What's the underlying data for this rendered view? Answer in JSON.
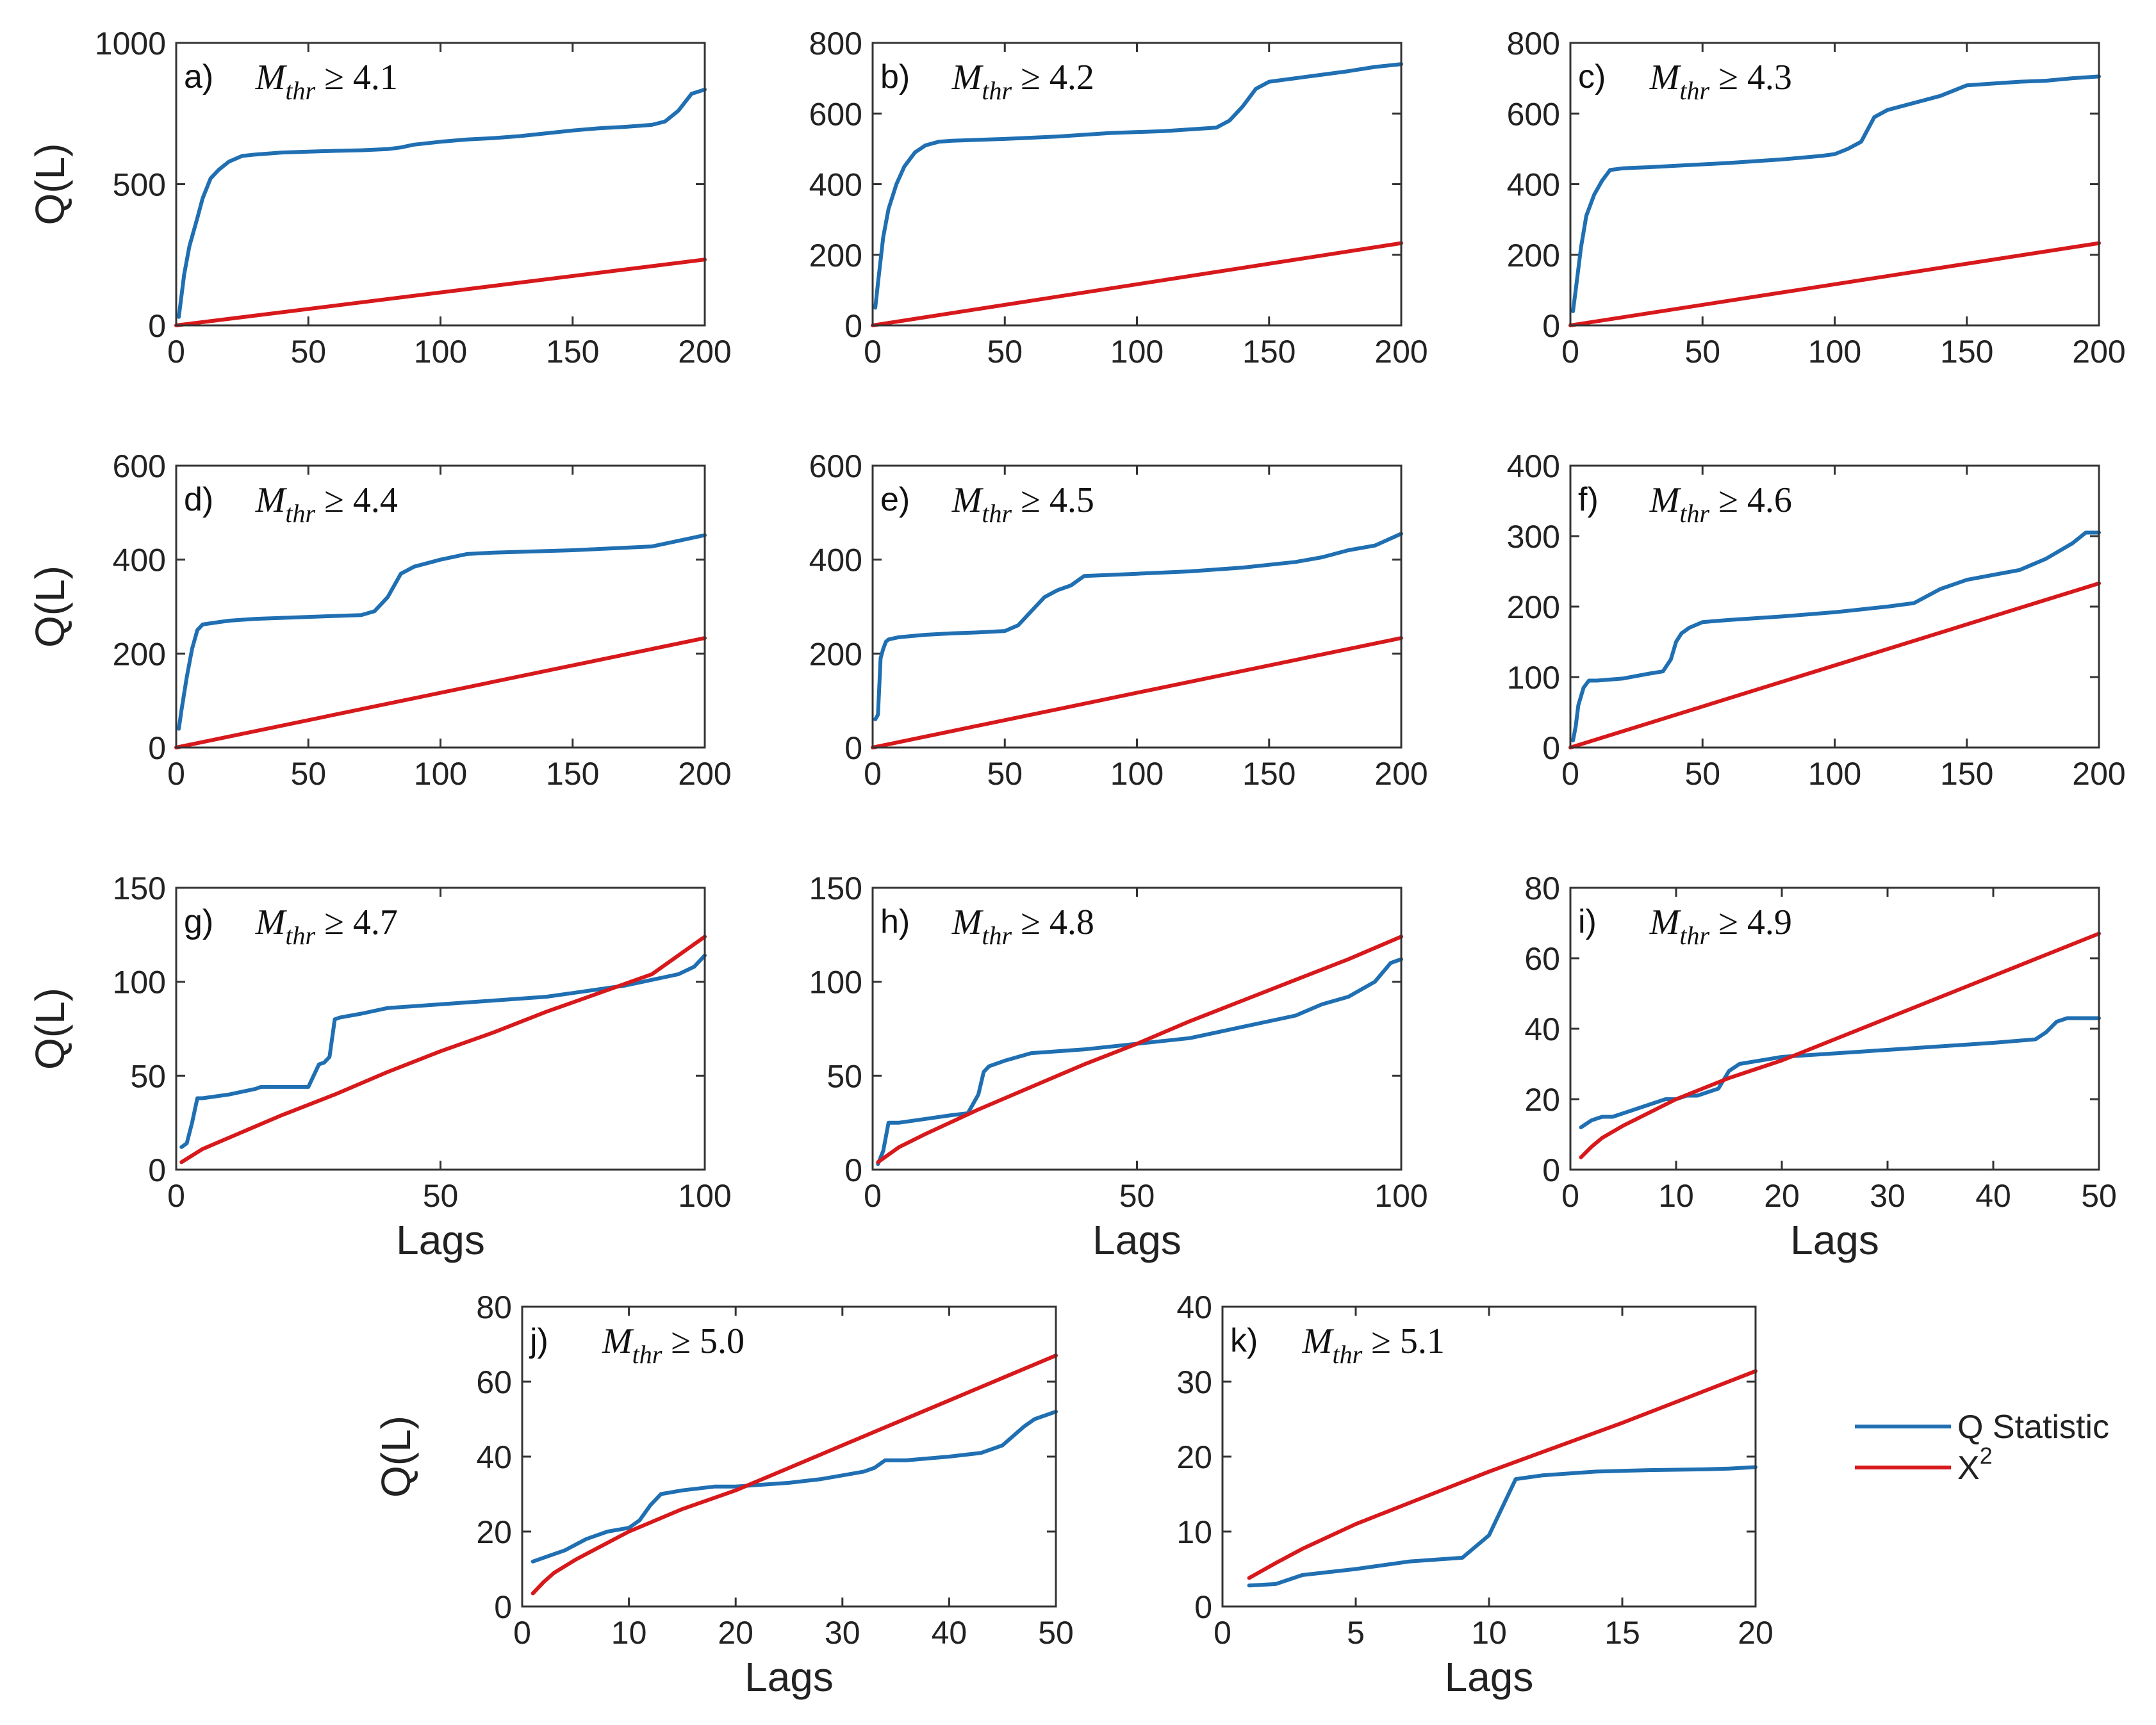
{
  "figure": {
    "legend": [
      {
        "name": "Q Statistic",
        "color": "#1f6fb2"
      },
      {
        "name": "X",
        "sup": "2",
        "color": "#d7191c"
      }
    ]
  },
  "chart_data": [
    {
      "id": "a",
      "type": "line",
      "panel_label": "a)",
      "mthr_prefix": "M",
      "mthr_sub": "thr",
      "mthr_suffix": " ≥ 4.1",
      "ylabel": "Q(L)",
      "xlabel": "",
      "xlim": [
        0,
        200
      ],
      "ylim": [
        0,
        1000
      ],
      "xticks": [
        0,
        50,
        100,
        150,
        200
      ],
      "yticks": [
        0,
        500,
        1000
      ],
      "series": [
        {
          "name": "Q Statistic",
          "x": [
            1,
            3,
            5,
            8,
            10,
            13,
            16,
            20,
            25,
            30,
            40,
            50,
            60,
            70,
            80,
            85,
            90,
            100,
            110,
            120,
            130,
            140,
            150,
            160,
            170,
            180,
            185,
            190,
            195,
            200
          ],
          "values": [
            30,
            180,
            280,
            380,
            450,
            520,
            550,
            580,
            600,
            605,
            612,
            615,
            618,
            620,
            624,
            630,
            640,
            650,
            658,
            663,
            670,
            680,
            690,
            698,
            703,
            710,
            722,
            760,
            820,
            835
          ]
        },
        {
          "name": "X2",
          "x": [
            0,
            200
          ],
          "values": [
            0,
            233
          ]
        }
      ]
    },
    {
      "id": "b",
      "type": "line",
      "panel_label": "b)",
      "mthr_prefix": "M",
      "mthr_sub": "thr",
      "mthr_suffix": " ≥ 4.2",
      "ylabel": "",
      "xlabel": "",
      "xlim": [
        0,
        200
      ],
      "ylim": [
        0,
        800
      ],
      "xticks": [
        0,
        50,
        100,
        150,
        200
      ],
      "yticks": [
        0,
        200,
        400,
        600,
        800
      ],
      "series": [
        {
          "name": "Q Statistic",
          "x": [
            1,
            2,
            4,
            6,
            9,
            12,
            16,
            20,
            25,
            30,
            50,
            70,
            90,
            110,
            130,
            135,
            140,
            145,
            150,
            160,
            170,
            180,
            190,
            200
          ],
          "values": [
            50,
            120,
            250,
            330,
            400,
            450,
            490,
            510,
            520,
            523,
            528,
            535,
            545,
            550,
            560,
            580,
            620,
            670,
            690,
            700,
            710,
            720,
            732,
            740
          ]
        },
        {
          "name": "X2",
          "x": [
            0,
            200
          ],
          "values": [
            0,
            233
          ]
        }
      ]
    },
    {
      "id": "c",
      "type": "line",
      "panel_label": "c)",
      "mthr_prefix": "M",
      "mthr_sub": "thr",
      "mthr_suffix": " ≥ 4.3",
      "ylabel": "",
      "xlabel": "",
      "xlim": [
        0,
        200
      ],
      "ylim": [
        0,
        800
      ],
      "xticks": [
        0,
        50,
        100,
        150,
        200
      ],
      "yticks": [
        0,
        200,
        400,
        600,
        800
      ],
      "series": [
        {
          "name": "Q Statistic",
          "x": [
            1,
            2,
            4,
            6,
            9,
            12,
            15,
            20,
            30,
            40,
            60,
            80,
            95,
            100,
            105,
            110,
            115,
            120,
            130,
            140,
            150,
            160,
            170,
            180,
            190,
            200
          ],
          "values": [
            40,
            100,
            220,
            310,
            370,
            410,
            440,
            445,
            448,
            452,
            460,
            470,
            480,
            485,
            500,
            520,
            590,
            610,
            630,
            650,
            680,
            685,
            690,
            693,
            700,
            705
          ]
        },
        {
          "name": "X2",
          "x": [
            0,
            200
          ],
          "values": [
            0,
            233
          ]
        }
      ]
    },
    {
      "id": "d",
      "type": "line",
      "panel_label": "d)",
      "mthr_prefix": "M",
      "mthr_sub": "thr",
      "mthr_suffix": " ≥ 4.4",
      "ylabel": "Q(L)",
      "xlabel": "",
      "xlim": [
        0,
        200
      ],
      "ylim": [
        0,
        600
      ],
      "xticks": [
        0,
        50,
        100,
        150,
        200
      ],
      "yticks": [
        0,
        200,
        400,
        600
      ],
      "series": [
        {
          "name": "Q Statistic",
          "x": [
            1,
            2,
            4,
            6,
            8,
            10,
            15,
            20,
            30,
            50,
            70,
            75,
            80,
            85,
            90,
            100,
            110,
            120,
            150,
            180,
            190,
            200
          ],
          "values": [
            40,
            80,
            150,
            210,
            250,
            262,
            266,
            270,
            274,
            278,
            282,
            290,
            320,
            370,
            385,
            400,
            412,
            415,
            420,
            428,
            440,
            452
          ]
        },
        {
          "name": "X2",
          "x": [
            0,
            200
          ],
          "values": [
            0,
            233
          ]
        }
      ]
    },
    {
      "id": "e",
      "type": "line",
      "panel_label": "e)",
      "mthr_prefix": "M",
      "mthr_sub": "thr",
      "mthr_suffix": " ≥ 4.5",
      "ylabel": "",
      "xlabel": "",
      "xlim": [
        0,
        200
      ],
      "ylim": [
        0,
        600
      ],
      "xticks": [
        0,
        50,
        100,
        150,
        200
      ],
      "yticks": [
        0,
        200,
        400,
        600
      ],
      "series": [
        {
          "name": "Q Statistic",
          "x": [
            1,
            2,
            3,
            4,
            5,
            6,
            10,
            20,
            30,
            40,
            50,
            55,
            60,
            65,
            70,
            75,
            80,
            100,
            120,
            140,
            160,
            170,
            180,
            190,
            200
          ],
          "values": [
            60,
            70,
            190,
            210,
            225,
            230,
            235,
            240,
            243,
            245,
            248,
            260,
            290,
            320,
            335,
            345,
            365,
            370,
            375,
            383,
            395,
            405,
            420,
            430,
            455
          ]
        },
        {
          "name": "X2",
          "x": [
            0,
            200
          ],
          "values": [
            0,
            233
          ]
        }
      ]
    },
    {
      "id": "f",
      "type": "line",
      "panel_label": "f)",
      "mthr_prefix": "M",
      "mthr_sub": "thr",
      "mthr_suffix": " ≥ 4.6",
      "ylabel": "",
      "xlabel": "",
      "xlim": [
        0,
        200
      ],
      "ylim": [
        0,
        400
      ],
      "xticks": [
        0,
        50,
        100,
        150,
        200
      ],
      "yticks": [
        0,
        100,
        200,
        300,
        400
      ],
      "series": [
        {
          "name": "Q Statistic",
          "x": [
            1,
            2,
            3,
            5,
            7,
            10,
            20,
            30,
            35,
            38,
            40,
            42,
            45,
            50,
            60,
            80,
            100,
            120,
            130,
            140,
            150,
            160,
            170,
            180,
            190,
            195,
            200
          ],
          "values": [
            10,
            30,
            60,
            85,
            95,
            95,
            98,
            105,
            108,
            125,
            150,
            162,
            170,
            178,
            181,
            186,
            192,
            200,
            205,
            225,
            238,
            245,
            252,
            268,
            290,
            305,
            305
          ]
        },
        {
          "name": "X2",
          "x": [
            0,
            200
          ],
          "values": [
            0,
            233
          ]
        }
      ]
    },
    {
      "id": "g",
      "type": "line",
      "panel_label": "g)",
      "mthr_prefix": "M",
      "mthr_sub": "thr",
      "mthr_suffix": " ≥ 4.7",
      "ylabel": "Q(L)",
      "xlabel": "Lags",
      "xlim": [
        0,
        100
      ],
      "ylim": [
        0,
        150
      ],
      "xticks": [
        0,
        50,
        100
      ],
      "yticks": [
        0,
        50,
        100,
        150
      ],
      "series": [
        {
          "name": "Q Statistic",
          "x": [
            1,
            2,
            3,
            4,
            5,
            10,
            15,
            16,
            20,
            25,
            26,
            27,
            28,
            29,
            30,
            31,
            35,
            40,
            50,
            60,
            70,
            75,
            80,
            85,
            90,
            95,
            98,
            100
          ],
          "values": [
            12,
            14,
            25,
            38,
            38,
            40,
            43,
            44,
            44,
            44,
            50,
            56,
            57,
            60,
            80,
            81,
            83,
            86,
            88,
            90,
            92,
            94,
            96,
            98,
            101,
            104,
            108,
            114
          ]
        },
        {
          "name": "X2",
          "x": [
            1,
            5,
            10,
            20,
            30,
            40,
            50,
            60,
            70,
            80,
            90,
            100
          ],
          "values": [
            4,
            11,
            17,
            29,
            40,
            52,
            63,
            73,
            84,
            94,
            104,
            124
          ]
        }
      ]
    },
    {
      "id": "h",
      "type": "line",
      "panel_label": "h)",
      "mthr_prefix": "M",
      "mthr_sub": "thr",
      "mthr_suffix": " ≥ 4.8",
      "ylabel": "",
      "xlabel": "Lags",
      "xlim": [
        0,
        100
      ],
      "ylim": [
        0,
        150
      ],
      "xticks": [
        0,
        50,
        100
      ],
      "yticks": [
        0,
        50,
        100,
        150
      ],
      "series": [
        {
          "name": "Q Statistic",
          "x": [
            1,
            2,
            3,
            5,
            10,
            15,
            18,
            19,
            20,
            21,
            22,
            25,
            30,
            40,
            50,
            60,
            70,
            80,
            85,
            90,
            95,
            98,
            100
          ],
          "values": [
            3,
            10,
            25,
            25,
            27,
            29,
            30,
            35,
            40,
            52,
            55,
            58,
            62,
            64,
            67,
            70,
            76,
            82,
            88,
            92,
            100,
            110,
            112
          ]
        },
        {
          "name": "X2",
          "x": [
            1,
            5,
            10,
            20,
            30,
            40,
            50,
            60,
            70,
            80,
            90,
            100
          ],
          "values": [
            4,
            12,
            19,
            32,
            44,
            56,
            67,
            79,
            90,
            101,
            112,
            124
          ]
        }
      ]
    },
    {
      "id": "i",
      "type": "line",
      "panel_label": "i)",
      "mthr_prefix": "M",
      "mthr_sub": "thr",
      "mthr_suffix": " ≥ 4.9",
      "ylabel": "",
      "xlabel": "Lags",
      "xlim": [
        0,
        50
      ],
      "ylim": [
        0,
        80
      ],
      "xticks": [
        0,
        10,
        20,
        30,
        40,
        50
      ],
      "yticks": [
        0,
        20,
        40,
        60,
        80
      ],
      "series": [
        {
          "name": "Q Statistic",
          "x": [
            1,
            2,
            3,
            4,
            5,
            6,
            7,
            8,
            9,
            10,
            11,
            12,
            13,
            14,
            15,
            16,
            18,
            20,
            25,
            30,
            35,
            40,
            44,
            45,
            46,
            47,
            48,
            50
          ],
          "values": [
            12,
            14,
            15,
            15,
            16,
            17,
            18,
            19,
            20,
            20,
            21,
            21,
            22,
            23,
            28,
            30,
            31,
            32,
            33,
            34,
            35,
            36,
            37,
            39,
            42,
            43,
            43,
            43
          ]
        },
        {
          "name": "X2",
          "x": [
            1,
            2,
            3,
            5,
            7,
            10,
            15,
            20,
            25,
            30,
            35,
            40,
            45,
            50
          ],
          "values": [
            3.5,
            6.5,
            9,
            12.5,
            15.5,
            20,
            26,
            31,
            37,
            43,
            49,
            55,
            61,
            67
          ]
        }
      ]
    },
    {
      "id": "j",
      "type": "line",
      "panel_label": "j)",
      "mthr_prefix": "M",
      "mthr_sub": "thr",
      "mthr_suffix": " ≥ 5.0",
      "ylabel": "Q(L)",
      "xlabel": "Lags",
      "xlim": [
        0,
        50
      ],
      "ylim": [
        0,
        80
      ],
      "xticks": [
        0,
        10,
        20,
        30,
        40,
        50
      ],
      "yticks": [
        0,
        20,
        40,
        60,
        80
      ],
      "series": [
        {
          "name": "Q Statistic",
          "x": [
            1,
            2,
            4,
            6,
            8,
            10,
            11,
            12,
            13,
            15,
            18,
            20,
            25,
            28,
            30,
            32,
            33,
            34,
            36,
            40,
            43,
            45,
            47,
            48,
            50
          ],
          "values": [
            12,
            13,
            15,
            18,
            20,
            21,
            23,
            27,
            30,
            31,
            32,
            32,
            33,
            34,
            35,
            36,
            37,
            39,
            39,
            40,
            41,
            43,
            48,
            50,
            52
          ]
        },
        {
          "name": "X2",
          "x": [
            1,
            2,
            3,
            5,
            7,
            10,
            15,
            20,
            25,
            30,
            35,
            40,
            45,
            50
          ],
          "values": [
            3.5,
            6.5,
            9,
            12.5,
            15.5,
            20,
            26,
            31,
            37,
            43,
            49,
            55,
            61,
            67
          ]
        }
      ]
    },
    {
      "id": "k",
      "type": "line",
      "panel_label": "k)",
      "mthr_prefix": "M",
      "mthr_sub": "thr",
      "mthr_suffix": " ≥ 5.1",
      "ylabel": "",
      "xlabel": "Lags",
      "xlim": [
        0,
        20
      ],
      "ylim": [
        0,
        40
      ],
      "xticks": [
        0,
        5,
        10,
        15,
        20
      ],
      "yticks": [
        0,
        10,
        20,
        30,
        40
      ],
      "series": [
        {
          "name": "Q Statistic",
          "x": [
            1,
            2,
            3,
            5,
            7,
            9,
            10,
            11,
            12,
            14,
            16,
            18,
            19,
            20
          ],
          "values": [
            2.8,
            3,
            4.2,
            5,
            6,
            6.5,
            9.5,
            17,
            17.5,
            18,
            18.2,
            18.3,
            18.4,
            18.6
          ]
        },
        {
          "name": "X2",
          "x": [
            1,
            2,
            3,
            5,
            7,
            10,
            15,
            20
          ],
          "values": [
            3.8,
            5.8,
            7.7,
            11,
            13.8,
            18,
            24.5,
            31.4
          ]
        }
      ]
    }
  ]
}
